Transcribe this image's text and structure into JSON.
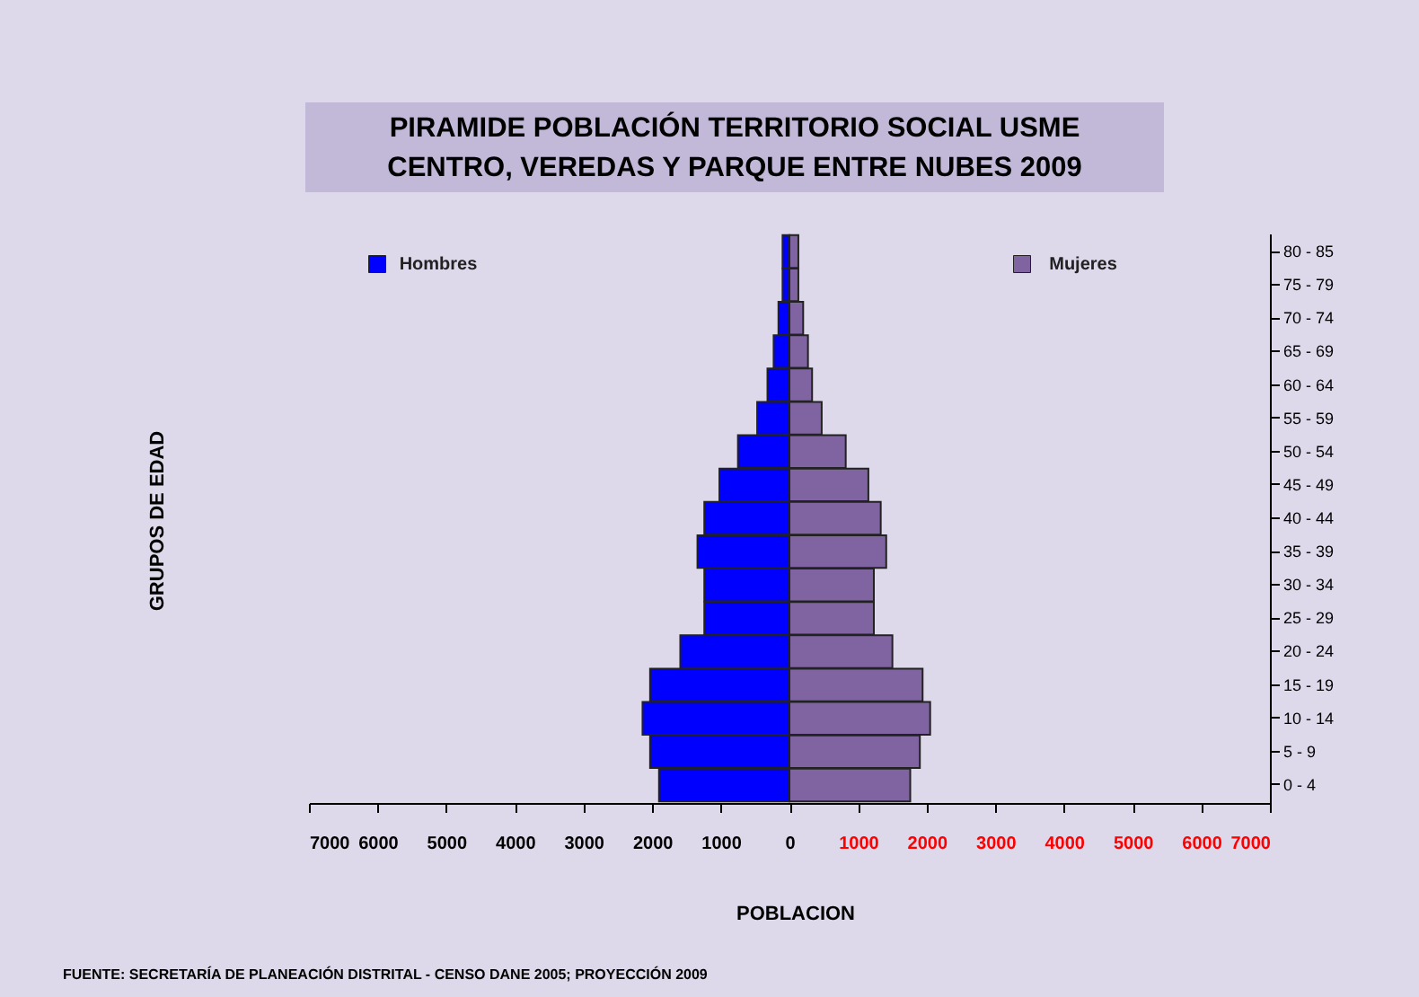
{
  "chart_data": {
    "type": "bar",
    "orientation": "horizontal",
    "stacked": true,
    "title": "PIRAMIDE POBLACIÓN TERRITORIO SOCIAL USME\nCENTRO, VEREDAS Y PARQUE ENTRE NUBES 2009",
    "xlabel": "POBLACION",
    "categories": [
      "80 - 85",
      "75 - 79",
      "70 - 74",
      "65 - 69",
      "60 - 64",
      "55 - 59",
      "50 - 54",
      "45 - 49",
      "40 - 44",
      "35 - 39",
      "30 - 34",
      "25 - 29",
      "20 - 24",
      "15 - 19",
      "10 - 14",
      "5 - 9",
      "0 - 4"
    ],
    "series": [
      {
        "name": "Hombres",
        "color": "#0000ff",
        "values": [
          -100,
          -100,
          -160,
          -230,
          -320,
          -470,
          -750,
          -1020,
          -1240,
          -1340,
          -1240,
          -1240,
          -1590,
          -2030,
          -2140,
          -2030,
          -1900
        ]
      },
      {
        "name": "Mujeres",
        "color": "#8064a2",
        "values": [
          130,
          130,
          200,
          270,
          330,
          470,
          820,
          1150,
          1330,
          1410,
          1230,
          1230,
          1500,
          1940,
          2050,
          1900,
          1760
        ]
      }
    ],
    "xlim": [
      -7000,
      7000
    ],
    "xticks": [
      {
        "value": -7000,
        "label": "7000"
      },
      {
        "value": -6000,
        "label": "6000"
      },
      {
        "value": -5000,
        "label": "5000"
      },
      {
        "value": -4000,
        "label": "4000"
      },
      {
        "value": -3000,
        "label": "3000"
      },
      {
        "value": -2000,
        "label": "2000"
      },
      {
        "value": -1000,
        "label": "1000"
      },
      0,
      1000,
      2000,
      3000,
      4000,
      5000,
      6000,
      7000
    ],
    "grid": false,
    "legend": "top",
    "annotations": [
      "GRUPOS DE EDAD",
      "FUENTE: SECRETARÍA DE PLANEACIÓN DISTRITAL - CENSO  DANE 2005; PROYECCIÓN 2009"
    ]
  }
}
